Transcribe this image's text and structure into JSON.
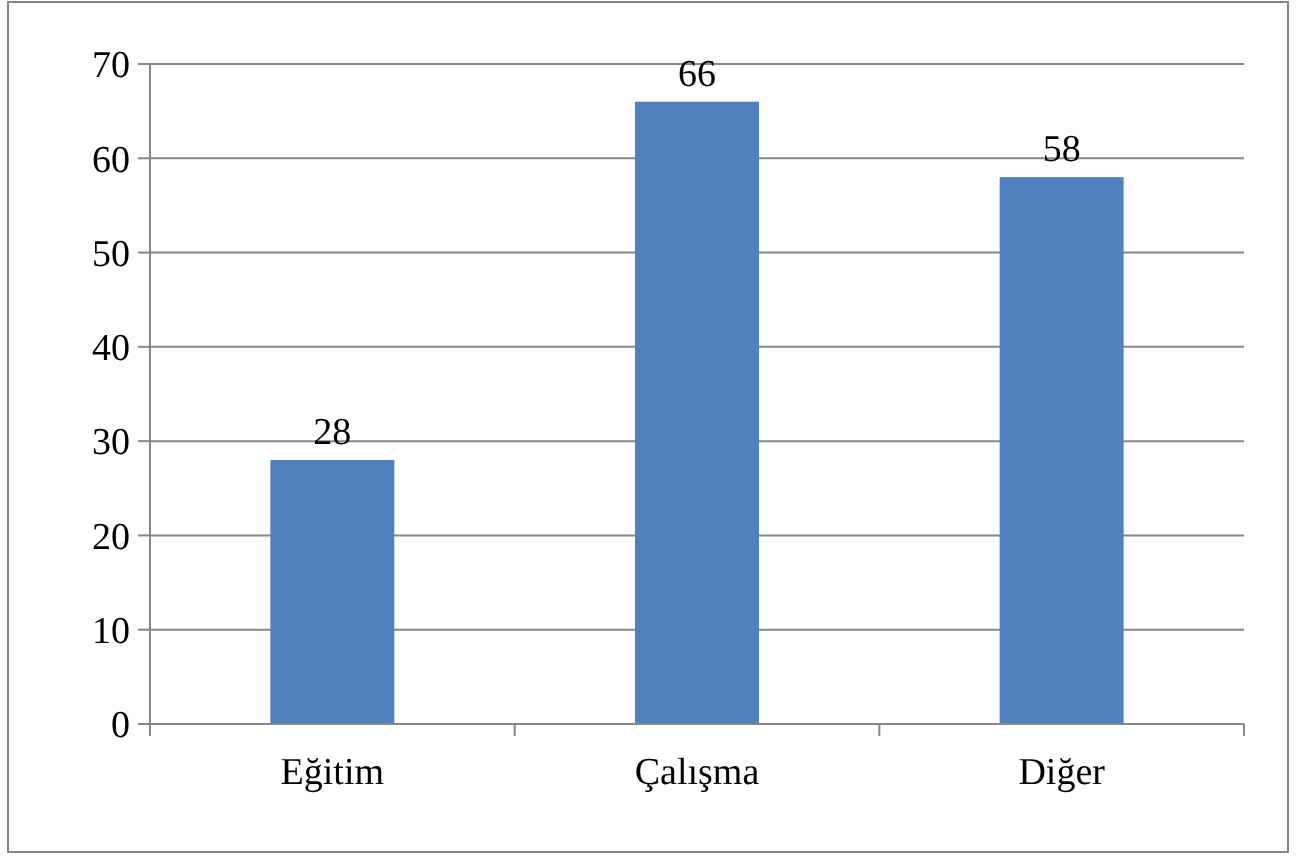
{
  "chart_data": {
    "type": "bar",
    "categories": [
      "Eğitim",
      "Çalışma",
      "Diğer"
    ],
    "values": [
      28,
      66,
      58
    ],
    "color": "#4f81bd",
    "ylim": [
      0,
      70
    ],
    "yticks": [
      0,
      10,
      20,
      30,
      40,
      50,
      60,
      70
    ],
    "grid": "y",
    "data_labels": true
  }
}
